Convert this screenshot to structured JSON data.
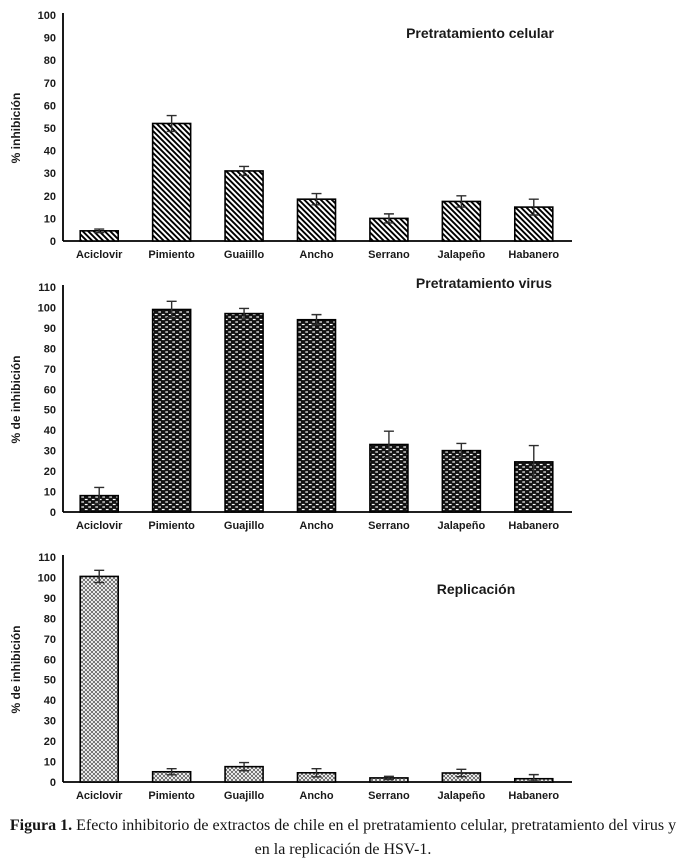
{
  "figure": {
    "caption_bold": "Figura 1.",
    "caption_line1": "Efecto inhibitorio de extractos de chile en el pretratamiento celular, pretratamiento del virus y",
    "caption_line2": "en la replicación de HSV-1."
  },
  "colors": {
    "background": "#ffffff",
    "axis": "#000000",
    "bar_outline": "#000000",
    "error_bar": "#2e2e2e",
    "text": "#1a1a1a"
  },
  "chart_data": [
    {
      "type": "bar",
      "title": "Pretratamiento celular",
      "ylabel": "% inhibición",
      "ylim": [
        0,
        100
      ],
      "ytick_step": 10,
      "grid": false,
      "legend": "none",
      "bar_pattern": "diagonal-hatch",
      "categories": [
        "Aciclovir",
        "Pimiento",
        "Guaiillo",
        "Ancho",
        "Serrano",
        "Jalapeño",
        "Habanero"
      ],
      "values": [
        4.5,
        52,
        31,
        18.5,
        10,
        17.5,
        15
      ],
      "errors": [
        0.8,
        3.5,
        2,
        2.5,
        2,
        2.5,
        3.5
      ]
    },
    {
      "type": "bar",
      "title": "Pretratamiento virus",
      "ylabel": "% de inhibición",
      "ylim": [
        0,
        110
      ],
      "ytick_step": 10,
      "grid": false,
      "legend": "none",
      "bar_pattern": "dark-dots",
      "categories": [
        "Aciclovir",
        "Pimiento",
        "Guajillo",
        "Ancho",
        "Serrano",
        "Jalapeño",
        "Habanero"
      ],
      "values": [
        8,
        99,
        97,
        94,
        33,
        30,
        24.5
      ],
      "errors": [
        4,
        4,
        2.5,
        2.5,
        6.5,
        3.5,
        8
      ]
    },
    {
      "type": "bar",
      "title": "Replicación",
      "ylabel": "% de inhibición",
      "ylim": [
        0,
        110
      ],
      "ytick_step": 10,
      "grid": false,
      "legend": "none",
      "bar_pattern": "light-mesh",
      "categories": [
        "Aciclovir",
        "Pimiento",
        "Guajillo",
        "Ancho",
        "Serrano",
        "Jalapeño",
        "Habanero"
      ],
      "values": [
        100.5,
        5,
        7.5,
        4.5,
        2,
        4.4,
        1.6
      ],
      "errors": [
        3,
        1.5,
        2,
        2,
        0.8,
        1.8,
        2
      ]
    }
  ]
}
